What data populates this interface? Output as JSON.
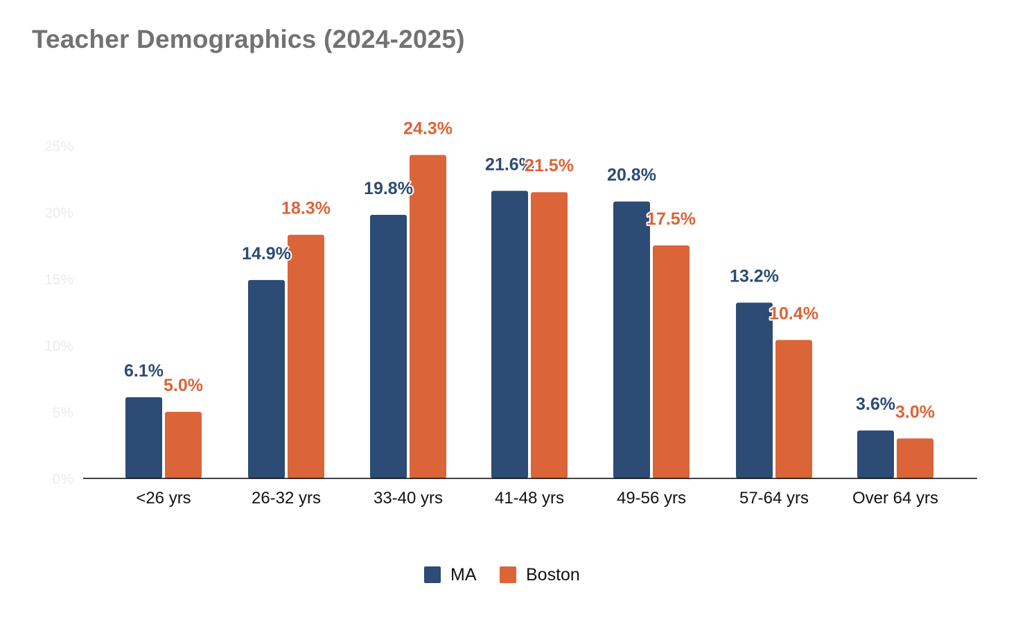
{
  "chart_data": {
    "type": "bar",
    "title": "Teacher Demographics (2024-2025)",
    "categories": [
      "<26 yrs",
      "26-32 yrs",
      "33-40 yrs",
      "41-48 yrs",
      "49-56 yrs",
      "57-64 yrs",
      "Over 64 yrs"
    ],
    "series": [
      {
        "name": "MA",
        "color": "#2c4b75",
        "values": [
          6.1,
          14.9,
          19.8,
          21.6,
          20.8,
          13.2,
          3.6
        ],
        "labels": [
          "6.1%",
          "14.9%",
          "19.8%",
          "21.6%",
          "20.8%",
          "13.2%",
          "3.6%"
        ]
      },
      {
        "name": "Boston",
        "color": "#db6439",
        "values": [
          5.0,
          18.3,
          24.3,
          21.5,
          17.5,
          10.4,
          3.0
        ],
        "labels": [
          "5.0%",
          "18.3%",
          "24.3%",
          "21.5%",
          "17.5%",
          "10.4%",
          "3.0%"
        ]
      }
    ],
    "ylim": [
      0,
      25
    ],
    "yticks": [
      "0%",
      "5%",
      "10%",
      "15%",
      "20%",
      "25%"
    ],
    "xlabel": "",
    "ylabel": "",
    "grid": false,
    "legend_position": "bottom"
  }
}
